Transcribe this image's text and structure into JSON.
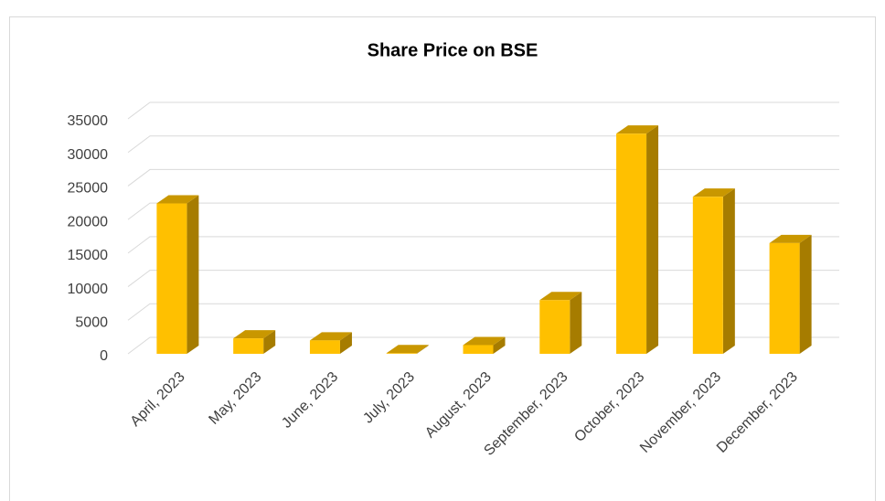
{
  "chart_data": {
    "type": "bar3d",
    "title": "Share Price on BSE",
    "categories": [
      "April, 2023",
      "May, 2023",
      "June, 2023",
      "July, 2023",
      "August, 2023",
      "September, 2023",
      "October, 2023",
      "November, 2023",
      "December, 2023"
    ],
    "values": [
      22400,
      2300,
      2000,
      100,
      1300,
      8000,
      32800,
      23400,
      16500
    ],
    "color": "#ffc000",
    "ylim": [
      0,
      35000
    ],
    "yticks": [
      0,
      5000,
      10000,
      15000,
      20000,
      25000,
      30000,
      35000
    ],
    "grid": true
  }
}
